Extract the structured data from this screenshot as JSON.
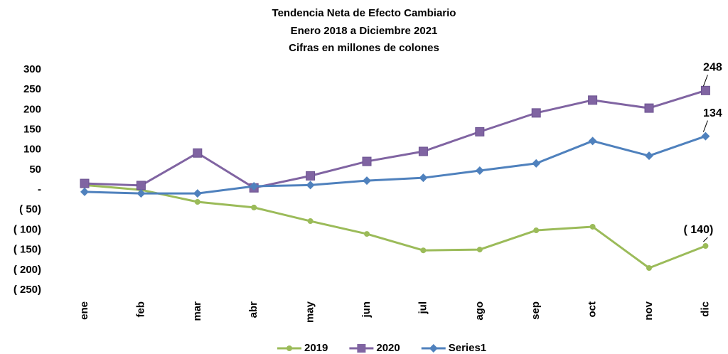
{
  "chart_data": {
    "type": "line",
    "title": "Tendencia Neta de Efecto Cambiario",
    "subtitle": [
      "Enero 2018 a Diciembre 2021",
      "Cifras en millones de colones"
    ],
    "categories": [
      "ene",
      "feb",
      "mar",
      "abr",
      "may",
      "jun",
      "jul",
      "ago",
      "sep",
      "oct",
      "nov",
      "dic"
    ],
    "series": [
      {
        "name": "2019",
        "color": "#9bbb59",
        "marker": "circle",
        "values": [
          12,
          0,
          -30,
          -44,
          -78,
          -110,
          -151,
          -149,
          -101,
          -92,
          -195,
          -140
        ],
        "value_labels": [
          null,
          null,
          null,
          null,
          null,
          null,
          null,
          null,
          null,
          null,
          null,
          "( 140)"
        ]
      },
      {
        "name": "2020",
        "color": "#8064a2",
        "marker": "square",
        "values": [
          16,
          11,
          92,
          5,
          35,
          71,
          96,
          145,
          192,
          224,
          204,
          248
        ],
        "value_labels": [
          null,
          null,
          null,
          null,
          null,
          null,
          null,
          null,
          null,
          null,
          null,
          "248"
        ]
      },
      {
        "name": "Series1",
        "color": "#4f81bd",
        "marker": "diamond",
        "values": [
          -5,
          -9,
          -9,
          9,
          12,
          23,
          30,
          48,
          66,
          122,
          85,
          134
        ],
        "value_labels": [
          null,
          null,
          null,
          null,
          null,
          null,
          null,
          null,
          null,
          null,
          null,
          "134"
        ]
      }
    ],
    "ylim": [
      -250,
      300
    ],
    "yticks": [
      300,
      250,
      200,
      150,
      100,
      50,
      {
        "value": 0,
        "label": "-"
      },
      {
        "value": -50,
        "label": "( 50)"
      },
      {
        "value": -100,
        "label": "( 100)"
      },
      {
        "value": -150,
        "label": "( 150)"
      },
      {
        "value": -200,
        "label": "( 200)"
      },
      {
        "value": -250,
        "label": "( 250)"
      }
    ],
    "grid": false,
    "legend": "bottom"
  }
}
